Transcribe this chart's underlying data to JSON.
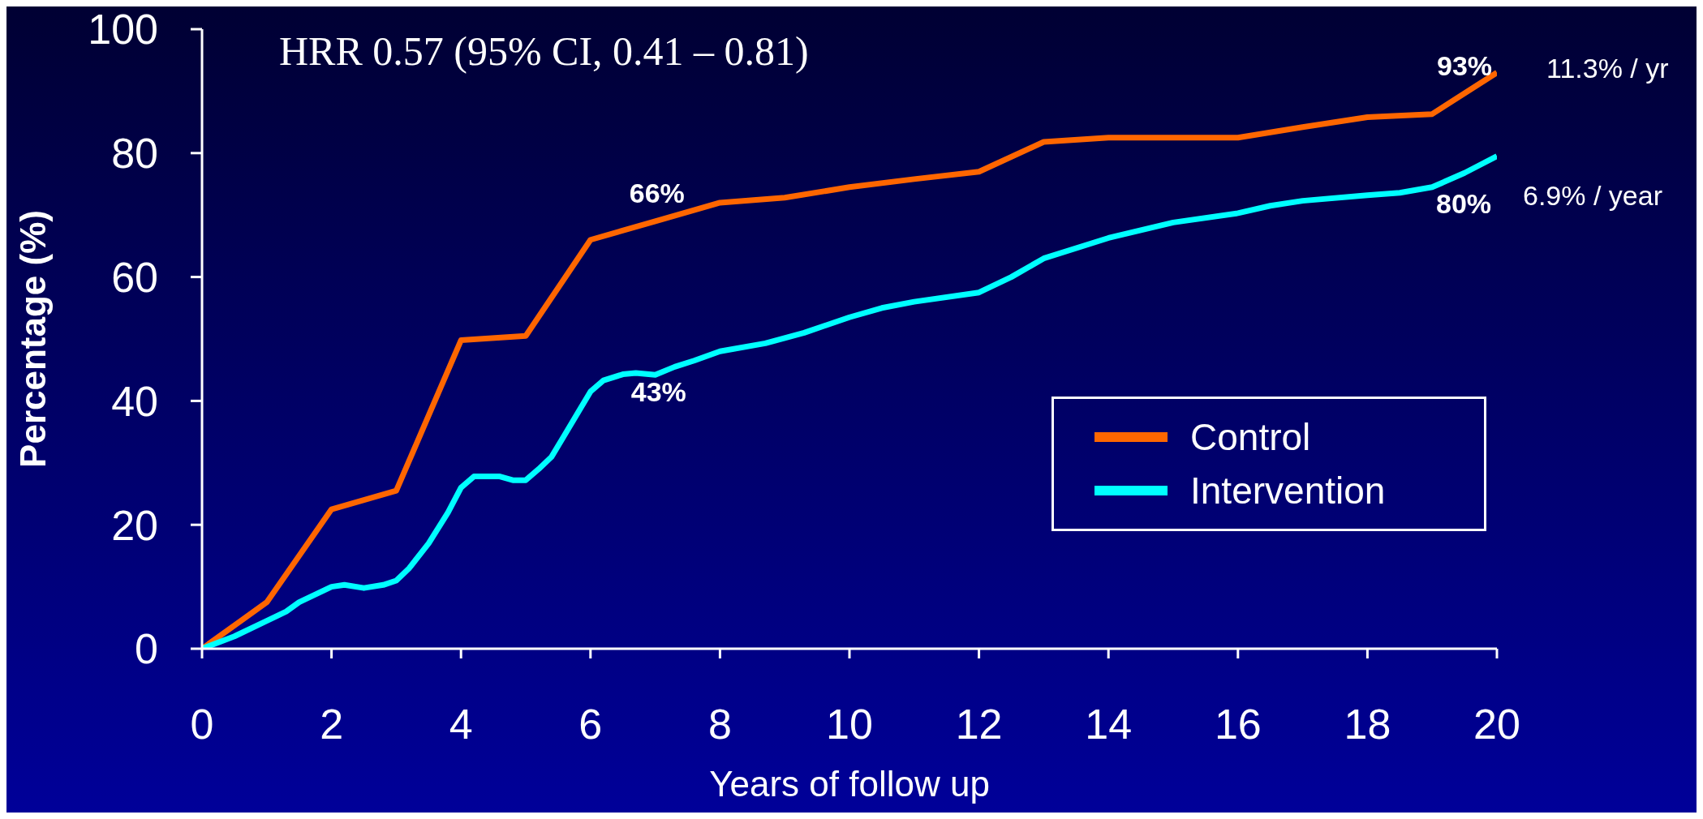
{
  "chart_data": {
    "type": "line",
    "xlabel": "Years of follow up",
    "ylabel": "Percentage (%)",
    "xlim": [
      0,
      20
    ],
    "xticks": [
      0,
      2,
      4,
      6,
      8,
      10,
      12,
      14,
      16,
      18,
      20
    ],
    "ylim": [
      0,
      100
    ],
    "yticks": [
      0,
      20,
      40,
      60,
      80,
      100
    ],
    "series": [
      {
        "name": "Control",
        "color": "#ff6600",
        "x": [
          0,
          1,
          2,
          3,
          4,
          5,
          6,
          7,
          8,
          9,
          10,
          11,
          12,
          13,
          14,
          15,
          16,
          17,
          18,
          19,
          20
        ],
        "values": [
          0,
          7.5,
          22.5,
          25.5,
          49.8,
          50.5,
          66,
          69,
          72,
          72.8,
          74.5,
          75.8,
          77,
          81.8,
          82.5,
          82.5,
          82.5,
          84.2,
          85.8,
          86.3,
          93
        ]
      },
      {
        "name": "Intervention",
        "color": "#00ffff",
        "x": [
          0,
          0.5,
          1,
          1.3,
          1.5,
          2,
          2.2,
          2.5,
          2.8,
          3,
          3.2,
          3.5,
          3.8,
          4,
          4.2,
          4.6,
          4.8,
          5,
          5.2,
          5.4,
          5.6,
          6,
          6.2,
          6.5,
          6.7,
          7,
          7.3,
          7.6,
          8,
          8.7,
          9.3,
          10,
          10.5,
          11,
          12,
          12.5,
          13,
          14,
          15,
          16,
          16.5,
          17,
          18,
          18.5,
          19,
          19.5,
          20
        ],
        "values": [
          0,
          2,
          4.5,
          6,
          7.5,
          10,
          10.3,
          9.8,
          10.3,
          11,
          13,
          17,
          22,
          26,
          27.8,
          27.8,
          27.2,
          27.2,
          29,
          31,
          34.5,
          41.5,
          43.3,
          44.3,
          44.5,
          44.2,
          45.5,
          46.5,
          48,
          49.3,
          51,
          53.5,
          55,
          56,
          57.5,
          60,
          63,
          66.3,
          68.8,
          70.3,
          71.5,
          72.3,
          73.2,
          73.6,
          74.5,
          76.8,
          79.5
        ]
      }
    ],
    "annotations": [
      "HRR 0.57 (95% CI, 0.41 – 0.81)",
      {
        "text": "66%",
        "x": 6,
        "y": 66
      },
      {
        "text": "43%",
        "x": 6.2,
        "y": 43.3
      },
      {
        "text": "93%",
        "x": 20,
        "y": 93
      },
      {
        "text": "80%",
        "x": 20,
        "y": 80
      },
      "11.3% / yr",
      "6.9% / year"
    ],
    "legend": "right",
    "grid": false,
    "marker": "none",
    "line_style": "solid"
  }
}
